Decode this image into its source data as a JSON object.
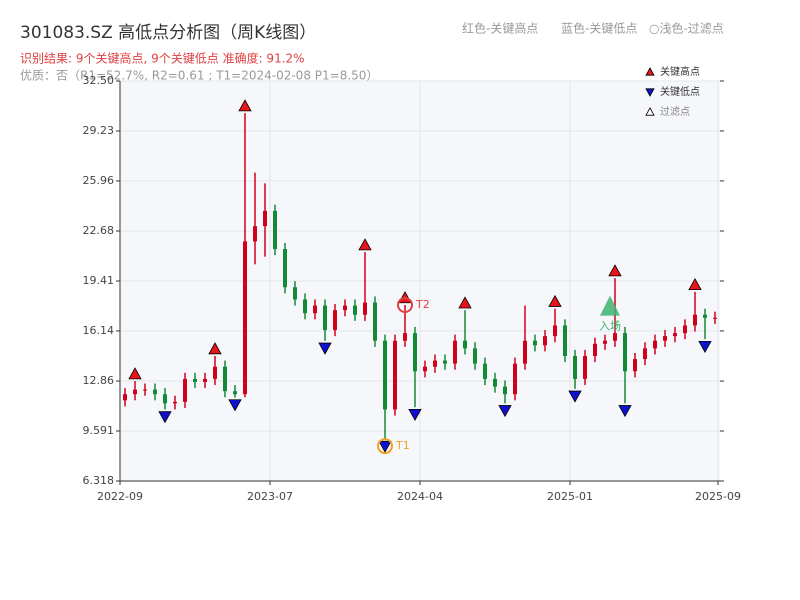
{
  "chart_data": {
    "type": "candlestick",
    "title": "301083.SZ 高低点分析图（周K线图）",
    "legend_text": [
      "红色-关键高点",
      "蓝色-关键低点",
      "○浅色-过滤点"
    ],
    "result_text": "识别结果: 9个关键高点, 9个关键低点  准确度: 91.2%",
    "quality_text": "优质：否（R1=52.7%, R2=0.61 ; T1=2024-02-08 P1=8.50）",
    "up_color": "#d0021b",
    "down_color": "#138a36",
    "xlim": [
      0,
      60
    ],
    "xticks": [
      {
        "value": 0,
        "label": "2022-09"
      },
      {
        "value": 15,
        "label": "2023-07"
      },
      {
        "value": 30,
        "label": "2024-04"
      },
      {
        "value": 45,
        "label": "2025-01"
      },
      {
        "value": 59.8,
        "label": "2025-09"
      }
    ],
    "ylim": [
      6.318,
      32.5
    ],
    "yticks": [
      6.318,
      9.591,
      12.86,
      16.14,
      19.41,
      22.68,
      25.96,
      29.23,
      {
        "value": 32.5,
        "label": "32.50"
      }
    ],
    "grid": true,
    "open": [
      11.6,
      12.0,
      12.3,
      12.3,
      12.0,
      11.4,
      11.5,
      13.0,
      12.8,
      13.0,
      13.8,
      12.2,
      12.0,
      22.0,
      23.0,
      24.0,
      21.5,
      19.0,
      18.2,
      17.3,
      17.8,
      16.2,
      17.5,
      17.8,
      17.2,
      18.0,
      15.5,
      11.0,
      15.5,
      16.0,
      13.5,
      13.8,
      14.2,
      14.0,
      15.5,
      15.0,
      14.0,
      13.0,
      12.5,
      12.0,
      14.0,
      15.5,
      15.2,
      15.8,
      16.5,
      14.5,
      13.0,
      14.5,
      15.3,
      15.5,
      16.0,
      13.5,
      14.3,
      15.0,
      15.5,
      15.8,
      16.0,
      16.5,
      17.2,
      17.0
    ],
    "high": [
      12.4,
      12.86,
      12.7,
      12.7,
      12.4,
      11.9,
      13.4,
      13.4,
      13.4,
      14.5,
      14.2,
      12.6,
      30.4,
      26.5,
      25.8,
      24.4,
      21.9,
      19.4,
      18.6,
      18.2,
      18.2,
      17.9,
      18.2,
      18.2,
      21.3,
      18.4,
      15.9,
      15.9,
      17.84,
      16.4,
      14.2,
      14.6,
      14.6,
      15.9,
      17.5,
      15.4,
      14.4,
      13.4,
      12.9,
      14.4,
      17.8,
      15.9,
      16.2,
      17.6,
      16.9,
      14.9,
      14.9,
      15.7,
      15.9,
      19.6,
      16.4,
      14.7,
      15.4,
      15.9,
      16.2,
      16.4,
      16.9,
      18.7,
      17.6,
      17.4
    ],
    "low": [
      11.2,
      11.6,
      11.9,
      11.6,
      11.0,
      11.0,
      11.1,
      12.4,
      12.4,
      12.6,
      11.8,
      11.78,
      11.8,
      20.5,
      21.0,
      21.1,
      18.6,
      17.8,
      16.9,
      16.9,
      15.49,
      15.8,
      17.1,
      16.8,
      16.8,
      15.1,
      9.06,
      10.6,
      15.1,
      11.15,
      13.1,
      13.4,
      13.6,
      13.6,
      14.6,
      13.6,
      12.6,
      12.1,
      11.4,
      11.6,
      13.6,
      14.8,
      14.8,
      15.4,
      14.1,
      12.35,
      12.6,
      14.1,
      14.9,
      15.1,
      11.4,
      13.1,
      13.9,
      14.6,
      15.1,
      15.4,
      15.6,
      16.1,
      15.6,
      16.6
    ],
    "close": [
      12.0,
      12.3,
      12.3,
      12.0,
      11.4,
      11.5,
      13.0,
      12.8,
      13.0,
      13.8,
      12.2,
      12.0,
      22.0,
      23.0,
      24.0,
      21.5,
      19.0,
      18.2,
      17.3,
      17.8,
      16.2,
      17.5,
      17.8,
      17.2,
      18.0,
      15.5,
      11.0,
      15.5,
      16.0,
      13.5,
      13.8,
      14.2,
      14.0,
      15.5,
      15.0,
      14.0,
      13.0,
      12.5,
      12.0,
      14.0,
      15.5,
      15.2,
      15.8,
      16.5,
      14.5,
      13.0,
      14.5,
      15.3,
      15.5,
      16.0,
      13.5,
      14.3,
      15.0,
      15.5,
      15.8,
      16.0,
      16.5,
      17.2,
      17.0,
      17.0
    ],
    "high_points": {
      "name": "关键高点",
      "color": "#e8141c",
      "points": [
        {
          "x": 1,
          "value": 12.86
        },
        {
          "x": 9,
          "value": 14.5
        },
        {
          "x": 12,
          "value": 30.4
        },
        {
          "x": 24,
          "value": 21.3
        },
        {
          "x": 28,
          "value": 17.84
        },
        {
          "x": 34,
          "value": 17.5
        },
        {
          "x": 43,
          "value": 17.6
        },
        {
          "x": 49,
          "value": 19.6
        },
        {
          "x": 57,
          "value": 18.7
        }
      ]
    },
    "low_points": {
      "name": "关键低点",
      "color": "#1010d0",
      "points": [
        {
          "x": 4,
          "value": 11.0
        },
        {
          "x": 11,
          "value": 11.78
        },
        {
          "x": 20,
          "value": 15.49
        },
        {
          "x": 26,
          "value": 9.06
        },
        {
          "x": 29,
          "value": 11.15
        },
        {
          "x": 38,
          "value": 11.4
        },
        {
          "x": 45,
          "value": 12.35
        },
        {
          "x": 50,
          "value": 11.4
        },
        {
          "x": 58,
          "value": 15.6
        }
      ]
    },
    "filtered_points": {
      "name": "过滤点",
      "color": "#ffffff"
    },
    "annotations": [
      {
        "label": "T1",
        "x": 26,
        "value": 8.6,
        "color": "#f0a020"
      },
      {
        "label": "T2",
        "x": 28,
        "value": 17.84,
        "color": "#e04040"
      },
      {
        "label": "入场",
        "x": 48.5,
        "value": 17.8,
        "color": "#3cb371"
      }
    ]
  }
}
